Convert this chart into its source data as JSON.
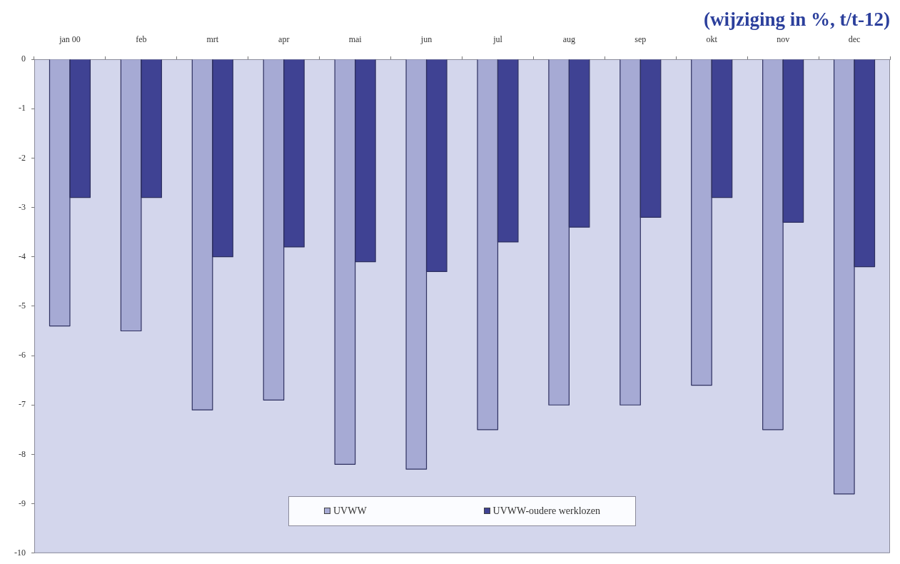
{
  "chart_data": {
    "type": "bar",
    "subtitle": "(wijziging in %, t/t-12)",
    "categories": [
      "jan 00",
      "feb",
      "mrt",
      "apr",
      "mai",
      "jun",
      "jul",
      "aug",
      "sep",
      "okt",
      "nov",
      "dec"
    ],
    "series": [
      {
        "name": "UVWW",
        "color": "#a6aad4",
        "values": [
          -5.4,
          -5.5,
          -7.1,
          -6.9,
          -8.2,
          -8.3,
          -7.5,
          -7.0,
          -7.0,
          -6.6,
          -7.5,
          -8.8
        ]
      },
      {
        "name": "UVWW-oudere werklozen",
        "color": "#3f4293",
        "values": [
          -2.8,
          -2.8,
          -4.0,
          -3.8,
          -4.1,
          -4.3,
          -3.7,
          -3.4,
          -3.2,
          -2.8,
          -3.3,
          -4.2
        ]
      }
    ],
    "ylim": [
      -10,
      0
    ],
    "yticks": [
      -10,
      -9,
      -8,
      -7,
      -6,
      -5,
      -4,
      -3,
      -2,
      -1,
      0
    ],
    "legend": "bottom"
  }
}
